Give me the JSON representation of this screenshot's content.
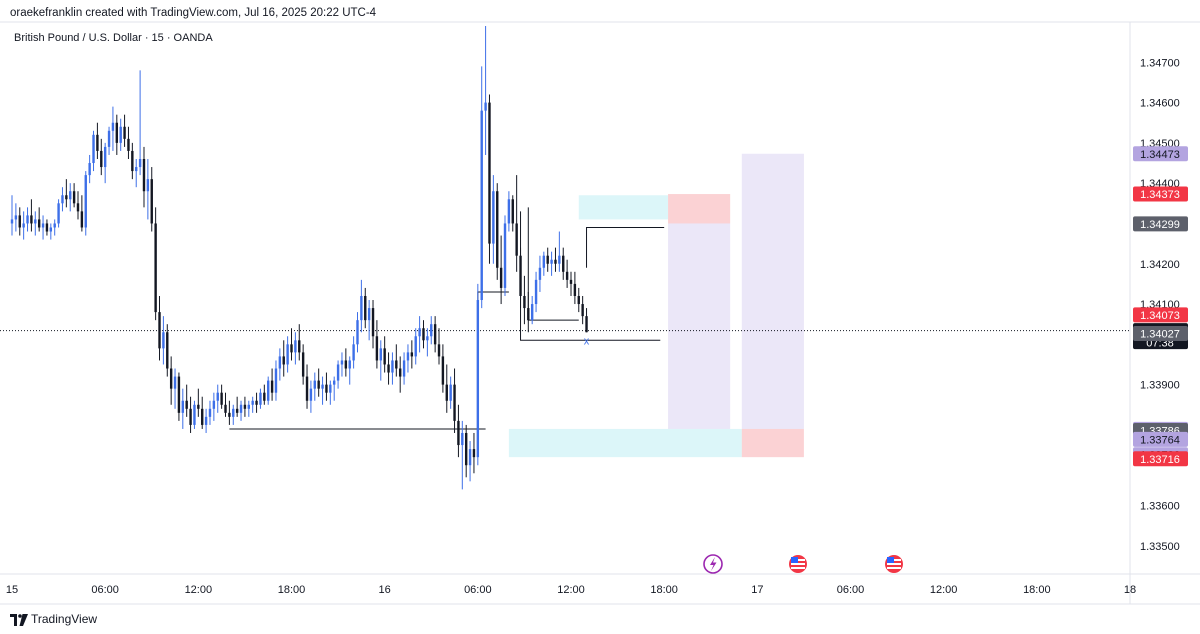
{
  "header": {
    "attribution": "oraekefranklin created with TradingView.com, Jul 16, 2025 20:22 UTC-4"
  },
  "symbol_label": "British Pound / U.S. Dollar · 15 · OANDA",
  "footer": {
    "brand": "TradingView"
  },
  "colors": {
    "up": "#3d6fe8",
    "down": "#131722",
    "teal_zone": "#b2ebf2",
    "red_zone": "#f8b4b8",
    "purple_zone": "#d8cff2",
    "red_tag": "#f23645",
    "purple_tag": "#b3a4e0",
    "gray_tag": "#5d606b",
    "black_tag": "#131722"
  },
  "icons": [
    "lightning-event-icon",
    "us-flag-event-icon",
    "us-flag-event-icon"
  ],
  "chart_data": {
    "type": "candlestick",
    "ylim": [
      1.3343,
      1.348
    ],
    "y_ticks": [
      "1.33500",
      "1.33600",
      "1.33900",
      "1.34100",
      "1.34200",
      "1.34400",
      "1.34500",
      "1.34600",
      "1.34700"
    ],
    "x_ticks": [
      "15",
      "06:00",
      "12:00",
      "18:00",
      "16",
      "06:00",
      "12:00",
      "18:00",
      "17",
      "06:00",
      "12:00",
      "18:00",
      "18"
    ],
    "x_range": [
      0,
      288
    ],
    "price_tags": [
      {
        "label": "1.34473",
        "price": 1.34473,
        "style": "purple"
      },
      {
        "label": "1.34373",
        "price": 1.34373,
        "style": "red"
      },
      {
        "label": "1.34299",
        "price": 1.34299,
        "style": "gray"
      },
      {
        "label": "1.34073",
        "price": 1.34073,
        "style": "red"
      },
      {
        "label": "1.34034",
        "sub": "07:38",
        "price": 1.34034,
        "style": "black"
      },
      {
        "label": "1.34027",
        "price": 1.34027,
        "style": "gray"
      },
      {
        "label": "1.33789",
        "price": 1.33789,
        "style": "purple"
      },
      {
        "label": "1.33786",
        "price": 1.33786,
        "style": "gray"
      },
      {
        "label": "1.33764",
        "price": 1.33764,
        "style": "purple"
      },
      {
        "label": "1.33726",
        "price": 1.33726,
        "style": "purple"
      },
      {
        "label": "1.33716",
        "price": 1.33716,
        "style": "red"
      }
    ],
    "current_price": 1.34034,
    "zones": [
      {
        "kind": "teal",
        "x0": 146,
        "x1": 169,
        "p0": 1.3437,
        "p1": 1.3431
      },
      {
        "kind": "red",
        "x0": 169,
        "x1": 185,
        "p0": 1.34373,
        "p1": 1.343
      },
      {
        "kind": "purple",
        "x0": 169,
        "x1": 185,
        "p0": 1.343,
        "p1": 1.3379
      },
      {
        "kind": "purple",
        "x0": 188,
        "x1": 204,
        "p0": 1.34473,
        "p1": 1.3379
      },
      {
        "kind": "teal",
        "x0": 128,
        "x1": 188,
        "p0": 1.3379,
        "p1": 1.3372
      },
      {
        "kind": "red",
        "x0": 188,
        "x1": 204,
        "p0": 1.3379,
        "p1": 1.3372
      }
    ],
    "lines": [
      {
        "points": [
          [
            56,
            1.3379
          ],
          [
            122,
            1.3379
          ]
        ]
      },
      {
        "points": [
          [
            120,
            1.3379
          ],
          [
            120,
            1.3413
          ],
          [
            128,
            1.3413
          ]
        ]
      },
      {
        "points": [
          [
            131,
            1.3433
          ],
          [
            131,
            1.3401
          ],
          [
            167,
            1.3401
          ]
        ]
      },
      {
        "points": [
          [
            133,
            1.3434
          ],
          [
            133,
            1.3406
          ],
          [
            146,
            1.3406
          ]
        ]
      },
      {
        "points": [
          [
            148,
            1.3419
          ],
          [
            148,
            1.3429
          ],
          [
            168,
            1.3429
          ]
        ]
      }
    ],
    "x_marker": {
      "label": "x",
      "x": 148,
      "price": 1.3401
    },
    "candles": [
      {
        "o": 1.343,
        "h": 1.3437,
        "l": 1.3427,
        "c": 1.3431
      },
      {
        "o": 1.3431,
        "h": 1.3435,
        "l": 1.3428,
        "c": 1.3432
      },
      {
        "o": 1.3432,
        "h": 1.3434,
        "l": 1.3427,
        "c": 1.3429
      },
      {
        "o": 1.3429,
        "h": 1.3433,
        "l": 1.3426,
        "c": 1.343
      },
      {
        "o": 1.343,
        "h": 1.3434,
        "l": 1.3428,
        "c": 1.3432
      },
      {
        "o": 1.3432,
        "h": 1.3436,
        "l": 1.3428,
        "c": 1.343
      },
      {
        "o": 1.343,
        "h": 1.3433,
        "l": 1.3427,
        "c": 1.3431
      },
      {
        "o": 1.3431,
        "h": 1.3434,
        "l": 1.3428,
        "c": 1.3429
      },
      {
        "o": 1.3429,
        "h": 1.3432,
        "l": 1.3426,
        "c": 1.343
      },
      {
        "o": 1.343,
        "h": 1.3431,
        "l": 1.3427,
        "c": 1.3428
      },
      {
        "o": 1.3428,
        "h": 1.343,
        "l": 1.3426,
        "c": 1.3429
      },
      {
        "o": 1.3429,
        "h": 1.3431,
        "l": 1.3427,
        "c": 1.343
      },
      {
        "o": 1.343,
        "h": 1.3436,
        "l": 1.3429,
        "c": 1.3435
      },
      {
        "o": 1.3435,
        "h": 1.3439,
        "l": 1.3433,
        "c": 1.3437
      },
      {
        "o": 1.3437,
        "h": 1.3441,
        "l": 1.3434,
        "c": 1.3436
      },
      {
        "o": 1.3436,
        "h": 1.344,
        "l": 1.3433,
        "c": 1.3438
      },
      {
        "o": 1.3438,
        "h": 1.344,
        "l": 1.3434,
        "c": 1.3435
      },
      {
        "o": 1.3435,
        "h": 1.3438,
        "l": 1.3431,
        "c": 1.3433
      },
      {
        "o": 1.3433,
        "h": 1.3437,
        "l": 1.3428,
        "c": 1.3429
      },
      {
        "o": 1.3429,
        "h": 1.3443,
        "l": 1.3427,
        "c": 1.3442
      },
      {
        "o": 1.3442,
        "h": 1.3447,
        "l": 1.344,
        "c": 1.3445
      },
      {
        "o": 1.3445,
        "h": 1.3453,
        "l": 1.3443,
        "c": 1.3452
      },
      {
        "o": 1.3452,
        "h": 1.3455,
        "l": 1.3446,
        "c": 1.3448
      },
      {
        "o": 1.3448,
        "h": 1.3451,
        "l": 1.3442,
        "c": 1.3444
      },
      {
        "o": 1.3444,
        "h": 1.345,
        "l": 1.344,
        "c": 1.3449
      },
      {
        "o": 1.3449,
        "h": 1.3454,
        "l": 1.3447,
        "c": 1.3453
      },
      {
        "o": 1.3453,
        "h": 1.3459,
        "l": 1.3448,
        "c": 1.3455
      },
      {
        "o": 1.3455,
        "h": 1.3457,
        "l": 1.3447,
        "c": 1.345
      },
      {
        "o": 1.345,
        "h": 1.3456,
        "l": 1.3448,
        "c": 1.3454
      },
      {
        "o": 1.3454,
        "h": 1.3457,
        "l": 1.3449,
        "c": 1.3451
      },
      {
        "o": 1.3451,
        "h": 1.3454,
        "l": 1.3446,
        "c": 1.3448
      },
      {
        "o": 1.3448,
        "h": 1.345,
        "l": 1.3441,
        "c": 1.3443
      },
      {
        "o": 1.3443,
        "h": 1.3446,
        "l": 1.3439,
        "c": 1.3444
      },
      {
        "o": 1.3444,
        "h": 1.3468,
        "l": 1.3442,
        "c": 1.3446
      },
      {
        "o": 1.3446,
        "h": 1.3449,
        "l": 1.3434,
        "c": 1.3438
      },
      {
        "o": 1.3438,
        "h": 1.3446,
        "l": 1.3431,
        "c": 1.3441
      },
      {
        "o": 1.3441,
        "h": 1.3444,
        "l": 1.3428,
        "c": 1.343
      },
      {
        "o": 1.343,
        "h": 1.3434,
        "l": 1.3406,
        "c": 1.3408
      },
      {
        "o": 1.3408,
        "h": 1.3412,
        "l": 1.3396,
        "c": 1.3399
      },
      {
        "o": 1.3399,
        "h": 1.3407,
        "l": 1.3395,
        "c": 1.3403
      },
      {
        "o": 1.3403,
        "h": 1.3405,
        "l": 1.3392,
        "c": 1.3394
      },
      {
        "o": 1.3394,
        "h": 1.3397,
        "l": 1.3385,
        "c": 1.3389
      },
      {
        "o": 1.3389,
        "h": 1.3394,
        "l": 1.3384,
        "c": 1.3392
      },
      {
        "o": 1.3392,
        "h": 1.3393,
        "l": 1.3381,
        "c": 1.3383
      },
      {
        "o": 1.3383,
        "h": 1.3389,
        "l": 1.3379,
        "c": 1.3386
      },
      {
        "o": 1.3386,
        "h": 1.339,
        "l": 1.3382,
        "c": 1.3384
      },
      {
        "o": 1.3384,
        "h": 1.3387,
        "l": 1.3378,
        "c": 1.338
      },
      {
        "o": 1.338,
        "h": 1.3386,
        "l": 1.3379,
        "c": 1.3385
      },
      {
        "o": 1.3385,
        "h": 1.3389,
        "l": 1.3382,
        "c": 1.3384
      },
      {
        "o": 1.3384,
        "h": 1.3387,
        "l": 1.3379,
        "c": 1.338
      },
      {
        "o": 1.338,
        "h": 1.3384,
        "l": 1.3378,
        "c": 1.3382
      },
      {
        "o": 1.3382,
        "h": 1.3386,
        "l": 1.338,
        "c": 1.3384
      },
      {
        "o": 1.3384,
        "h": 1.3388,
        "l": 1.3381,
        "c": 1.3386
      },
      {
        "o": 1.3386,
        "h": 1.339,
        "l": 1.3383,
        "c": 1.3388
      },
      {
        "o": 1.3388,
        "h": 1.339,
        "l": 1.3384,
        "c": 1.3385
      },
      {
        "o": 1.3385,
        "h": 1.3388,
        "l": 1.3382,
        "c": 1.3383
      },
      {
        "o": 1.3383,
        "h": 1.3386,
        "l": 1.338,
        "c": 1.3382
      },
      {
        "o": 1.3382,
        "h": 1.3385,
        "l": 1.338,
        "c": 1.3384
      },
      {
        "o": 1.3384,
        "h": 1.3387,
        "l": 1.3382,
        "c": 1.3383
      },
      {
        "o": 1.3383,
        "h": 1.3386,
        "l": 1.3381,
        "c": 1.3385
      },
      {
        "o": 1.3385,
        "h": 1.3387,
        "l": 1.3382,
        "c": 1.3384
      },
      {
        "o": 1.3384,
        "h": 1.3386,
        "l": 1.3382,
        "c": 1.3385
      },
      {
        "o": 1.3385,
        "h": 1.3387,
        "l": 1.3383,
        "c": 1.3386
      },
      {
        "o": 1.3386,
        "h": 1.3388,
        "l": 1.3383,
        "c": 1.3385
      },
      {
        "o": 1.3385,
        "h": 1.3389,
        "l": 1.3384,
        "c": 1.3388
      },
      {
        "o": 1.3388,
        "h": 1.339,
        "l": 1.3385,
        "c": 1.3386
      },
      {
        "o": 1.3386,
        "h": 1.3392,
        "l": 1.3385,
        "c": 1.3391
      },
      {
        "o": 1.3391,
        "h": 1.3394,
        "l": 1.3386,
        "c": 1.3388
      },
      {
        "o": 1.3388,
        "h": 1.3396,
        "l": 1.3386,
        "c": 1.3394
      },
      {
        "o": 1.3394,
        "h": 1.3399,
        "l": 1.3391,
        "c": 1.3397
      },
      {
        "o": 1.3397,
        "h": 1.3401,
        "l": 1.3392,
        "c": 1.3395
      },
      {
        "o": 1.3395,
        "h": 1.3402,
        "l": 1.3393,
        "c": 1.34
      },
      {
        "o": 1.34,
        "h": 1.3404,
        "l": 1.3396,
        "c": 1.3398
      },
      {
        "o": 1.3398,
        "h": 1.3403,
        "l": 1.3395,
        "c": 1.3401
      },
      {
        "o": 1.3401,
        "h": 1.3405,
        "l": 1.3396,
        "c": 1.3398
      },
      {
        "o": 1.3398,
        "h": 1.34,
        "l": 1.339,
        "c": 1.3392
      },
      {
        "o": 1.3392,
        "h": 1.3395,
        "l": 1.3384,
        "c": 1.3386
      },
      {
        "o": 1.3386,
        "h": 1.3391,
        "l": 1.3383,
        "c": 1.3389
      },
      {
        "o": 1.3389,
        "h": 1.3393,
        "l": 1.3386,
        "c": 1.3391
      },
      {
        "o": 1.3391,
        "h": 1.3394,
        "l": 1.3387,
        "c": 1.3389
      },
      {
        "o": 1.3389,
        "h": 1.3392,
        "l": 1.3385,
        "c": 1.339
      },
      {
        "o": 1.339,
        "h": 1.3393,
        "l": 1.3386,
        "c": 1.3388
      },
      {
        "o": 1.3388,
        "h": 1.3391,
        "l": 1.3385,
        "c": 1.339
      },
      {
        "o": 1.339,
        "h": 1.3392,
        "l": 1.3386,
        "c": 1.3391
      },
      {
        "o": 1.3391,
        "h": 1.3396,
        "l": 1.3389,
        "c": 1.3395
      },
      {
        "o": 1.3395,
        "h": 1.3398,
        "l": 1.3392,
        "c": 1.3396
      },
      {
        "o": 1.3396,
        "h": 1.3399,
        "l": 1.3392,
        "c": 1.3394
      },
      {
        "o": 1.3394,
        "h": 1.3397,
        "l": 1.339,
        "c": 1.3396
      },
      {
        "o": 1.3396,
        "h": 1.3402,
        "l": 1.3394,
        "c": 1.34
      },
      {
        "o": 1.34,
        "h": 1.3408,
        "l": 1.3398,
        "c": 1.3406
      },
      {
        "o": 1.3406,
        "h": 1.3416,
        "l": 1.3403,
        "c": 1.3412
      },
      {
        "o": 1.3412,
        "h": 1.3414,
        "l": 1.3404,
        "c": 1.3406
      },
      {
        "o": 1.3406,
        "h": 1.3411,
        "l": 1.3401,
        "c": 1.3409
      },
      {
        "o": 1.3409,
        "h": 1.3411,
        "l": 1.3399,
        "c": 1.3402
      },
      {
        "o": 1.3402,
        "h": 1.3406,
        "l": 1.3394,
        "c": 1.3396
      },
      {
        "o": 1.3396,
        "h": 1.3401,
        "l": 1.3391,
        "c": 1.3399
      },
      {
        "o": 1.3399,
        "h": 1.3402,
        "l": 1.3393,
        "c": 1.3395
      },
      {
        "o": 1.3395,
        "h": 1.3398,
        "l": 1.339,
        "c": 1.3393
      },
      {
        "o": 1.3393,
        "h": 1.3398,
        "l": 1.339,
        "c": 1.3396
      },
      {
        "o": 1.3396,
        "h": 1.34,
        "l": 1.3392,
        "c": 1.3394
      },
      {
        "o": 1.3394,
        "h": 1.3397,
        "l": 1.3388,
        "c": 1.3392
      },
      {
        "o": 1.3392,
        "h": 1.3398,
        "l": 1.339,
        "c": 1.3396
      },
      {
        "o": 1.3396,
        "h": 1.34,
        "l": 1.3393,
        "c": 1.3398
      },
      {
        "o": 1.3398,
        "h": 1.3401,
        "l": 1.3394,
        "c": 1.3397
      },
      {
        "o": 1.3397,
        "h": 1.3404,
        "l": 1.3395,
        "c": 1.3402
      },
      {
        "o": 1.3402,
        "h": 1.3407,
        "l": 1.3398,
        "c": 1.3404
      },
      {
        "o": 1.3404,
        "h": 1.3406,
        "l": 1.3399,
        "c": 1.3401
      },
      {
        "o": 1.3401,
        "h": 1.3404,
        "l": 1.3397,
        "c": 1.3402
      },
      {
        "o": 1.3402,
        "h": 1.3407,
        "l": 1.34,
        "c": 1.3405
      },
      {
        "o": 1.3405,
        "h": 1.3407,
        "l": 1.3398,
        "c": 1.34
      },
      {
        "o": 1.34,
        "h": 1.3404,
        "l": 1.3395,
        "c": 1.3397
      },
      {
        "o": 1.3397,
        "h": 1.34,
        "l": 1.3388,
        "c": 1.339
      },
      {
        "o": 1.339,
        "h": 1.3395,
        "l": 1.3383,
        "c": 1.3386
      },
      {
        "o": 1.3386,
        "h": 1.3392,
        "l": 1.3384,
        "c": 1.339
      },
      {
        "o": 1.339,
        "h": 1.3394,
        "l": 1.3378,
        "c": 1.3381
      },
      {
        "o": 1.3381,
        "h": 1.3385,
        "l": 1.3372,
        "c": 1.3375
      },
      {
        "o": 1.3375,
        "h": 1.3381,
        "l": 1.3364,
        "c": 1.3378
      },
      {
        "o": 1.3378,
        "h": 1.338,
        "l": 1.3367,
        "c": 1.337
      },
      {
        "o": 1.337,
        "h": 1.3376,
        "l": 1.3366,
        "c": 1.3374
      },
      {
        "o": 1.3374,
        "h": 1.3378,
        "l": 1.3368,
        "c": 1.3372
      },
      {
        "o": 1.3372,
        "h": 1.3415,
        "l": 1.337,
        "c": 1.3411
      },
      {
        "o": 1.3411,
        "h": 1.3469,
        "l": 1.3409,
        "c": 1.3458
      },
      {
        "o": 1.3458,
        "h": 1.3479,
        "l": 1.3447,
        "c": 1.346
      },
      {
        "o": 1.346,
        "h": 1.3462,
        "l": 1.342,
        "c": 1.3425
      },
      {
        "o": 1.3425,
        "h": 1.3442,
        "l": 1.342,
        "c": 1.3438
      },
      {
        "o": 1.3438,
        "h": 1.344,
        "l": 1.3416,
        "c": 1.3419
      },
      {
        "o": 1.3419,
        "h": 1.3427,
        "l": 1.341,
        "c": 1.3414
      },
      {
        "o": 1.3414,
        "h": 1.3432,
        "l": 1.3412,
        "c": 1.343
      },
      {
        "o": 1.343,
        "h": 1.3438,
        "l": 1.3428,
        "c": 1.3436
      },
      {
        "o": 1.3436,
        "h": 1.3437,
        "l": 1.3428,
        "c": 1.343
      },
      {
        "o": 1.343,
        "h": 1.3442,
        "l": 1.3418,
        "c": 1.3422
      },
      {
        "o": 1.3422,
        "h": 1.3424,
        "l": 1.3409,
        "c": 1.3412
      },
      {
        "o": 1.3412,
        "h": 1.3417,
        "l": 1.3405,
        "c": 1.3409
      },
      {
        "o": 1.3409,
        "h": 1.3413,
        "l": 1.3403,
        "c": 1.3406
      },
      {
        "o": 1.3406,
        "h": 1.3412,
        "l": 1.3405,
        "c": 1.341
      },
      {
        "o": 1.341,
        "h": 1.3418,
        "l": 1.3408,
        "c": 1.3416
      },
      {
        "o": 1.3416,
        "h": 1.3422,
        "l": 1.3413,
        "c": 1.3419
      },
      {
        "o": 1.3419,
        "h": 1.3423,
        "l": 1.3417,
        "c": 1.3422
      },
      {
        "o": 1.3422,
        "h": 1.3424,
        "l": 1.3418,
        "c": 1.342
      },
      {
        "o": 1.342,
        "h": 1.3423,
        "l": 1.3417,
        "c": 1.3421
      },
      {
        "o": 1.3421,
        "h": 1.3424,
        "l": 1.3418,
        "c": 1.342
      },
      {
        "o": 1.342,
        "h": 1.3428,
        "l": 1.3418,
        "c": 1.3422
      },
      {
        "o": 1.3422,
        "h": 1.3424,
        "l": 1.3416,
        "c": 1.3418
      },
      {
        "o": 1.3418,
        "h": 1.3421,
        "l": 1.3414,
        "c": 1.3416
      },
      {
        "o": 1.3416,
        "h": 1.3418,
        "l": 1.3412,
        "c": 1.3415
      },
      {
        "o": 1.3415,
        "h": 1.3418,
        "l": 1.341,
        "c": 1.3412
      },
      {
        "o": 1.3412,
        "h": 1.3414,
        "l": 1.3408,
        "c": 1.341
      },
      {
        "o": 1.341,
        "h": 1.3412,
        "l": 1.3405,
        "c": 1.3407
      },
      {
        "o": 1.3407,
        "h": 1.3409,
        "l": 1.3403,
        "c": 1.3403
      }
    ]
  }
}
